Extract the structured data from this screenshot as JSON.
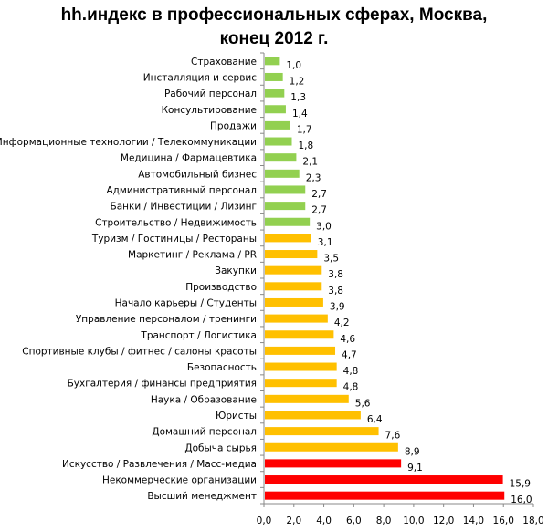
{
  "chart_data": {
    "type": "bar",
    "orientation": "horizontal",
    "title_line1": "hh.индекс в профессиональных сферах, Москва,",
    "title_line2": "конец 2012 г.",
    "xlabel": "",
    "ylabel": "",
    "xlim": [
      0,
      18
    ],
    "x_ticks": [
      "0,0",
      "2,0",
      "4,0",
      "6,0",
      "8,0",
      "10,0",
      "12,0",
      "14,0",
      "16,0",
      "18,0"
    ],
    "grid": false,
    "legend": "none",
    "colors": {
      "green": "#92D050",
      "orange": "#FFC000",
      "red": "#FF0000"
    },
    "categories": [
      "Страхование",
      "Инсталляция и сервис",
      "Рабочий персонал",
      "Консультирование",
      "Продажи",
      "Информационные технологии / Телекоммуникации",
      "Медицина / Фармацевтика",
      "Автомобильный бизнес",
      "Административный персонал",
      "Банки / Инвестиции / Лизинг",
      "Строительство / Недвижимость",
      "Туризм / Гостиницы / Рестораны",
      "Маркетинг / Реклама / PR",
      "Закупки",
      "Производство",
      "Начало карьеры / Студенты",
      "Управление персоналом / тренинги",
      "Транспорт / Логистика",
      "Спортивные клубы / фитнес / салоны красоты",
      "Безопасность",
      "Бухгалтерия / финансы предприятия",
      "Наука / Образование",
      "Юристы",
      "Домашний персонал",
      "Добыча сырья",
      "Искусство / Развлечения / Масс-медиа",
      "Некоммерческие организации",
      "Высший менеджмент"
    ],
    "values": [
      1.0,
      1.2,
      1.3,
      1.4,
      1.7,
      1.8,
      2.1,
      2.3,
      2.7,
      2.7,
      3.0,
      3.1,
      3.5,
      3.8,
      3.8,
      3.9,
      4.2,
      4.6,
      4.7,
      4.8,
      4.8,
      5.6,
      6.4,
      7.6,
      8.9,
      9.1,
      15.9,
      16.0
    ],
    "value_labels": [
      "1,0",
      "1,2",
      "1,3",
      "1,4",
      "1,7",
      "1,8",
      "2,1",
      "2,3",
      "2,7",
      "2,7",
      "3,0",
      "3,1",
      "3,5",
      "3,8",
      "3,8",
      "3,9",
      "4,2",
      "4,6",
      "4,7",
      "4,8",
      "4,8",
      "5,6",
      "6,4",
      "7,6",
      "8,9",
      "9,1",
      "15,9",
      "16,0"
    ],
    "bar_colors": [
      "green",
      "green",
      "green",
      "green",
      "green",
      "green",
      "green",
      "green",
      "green",
      "green",
      "green",
      "orange",
      "orange",
      "orange",
      "orange",
      "orange",
      "orange",
      "orange",
      "orange",
      "orange",
      "orange",
      "orange",
      "orange",
      "orange",
      "orange",
      "red",
      "red",
      "red"
    ]
  }
}
